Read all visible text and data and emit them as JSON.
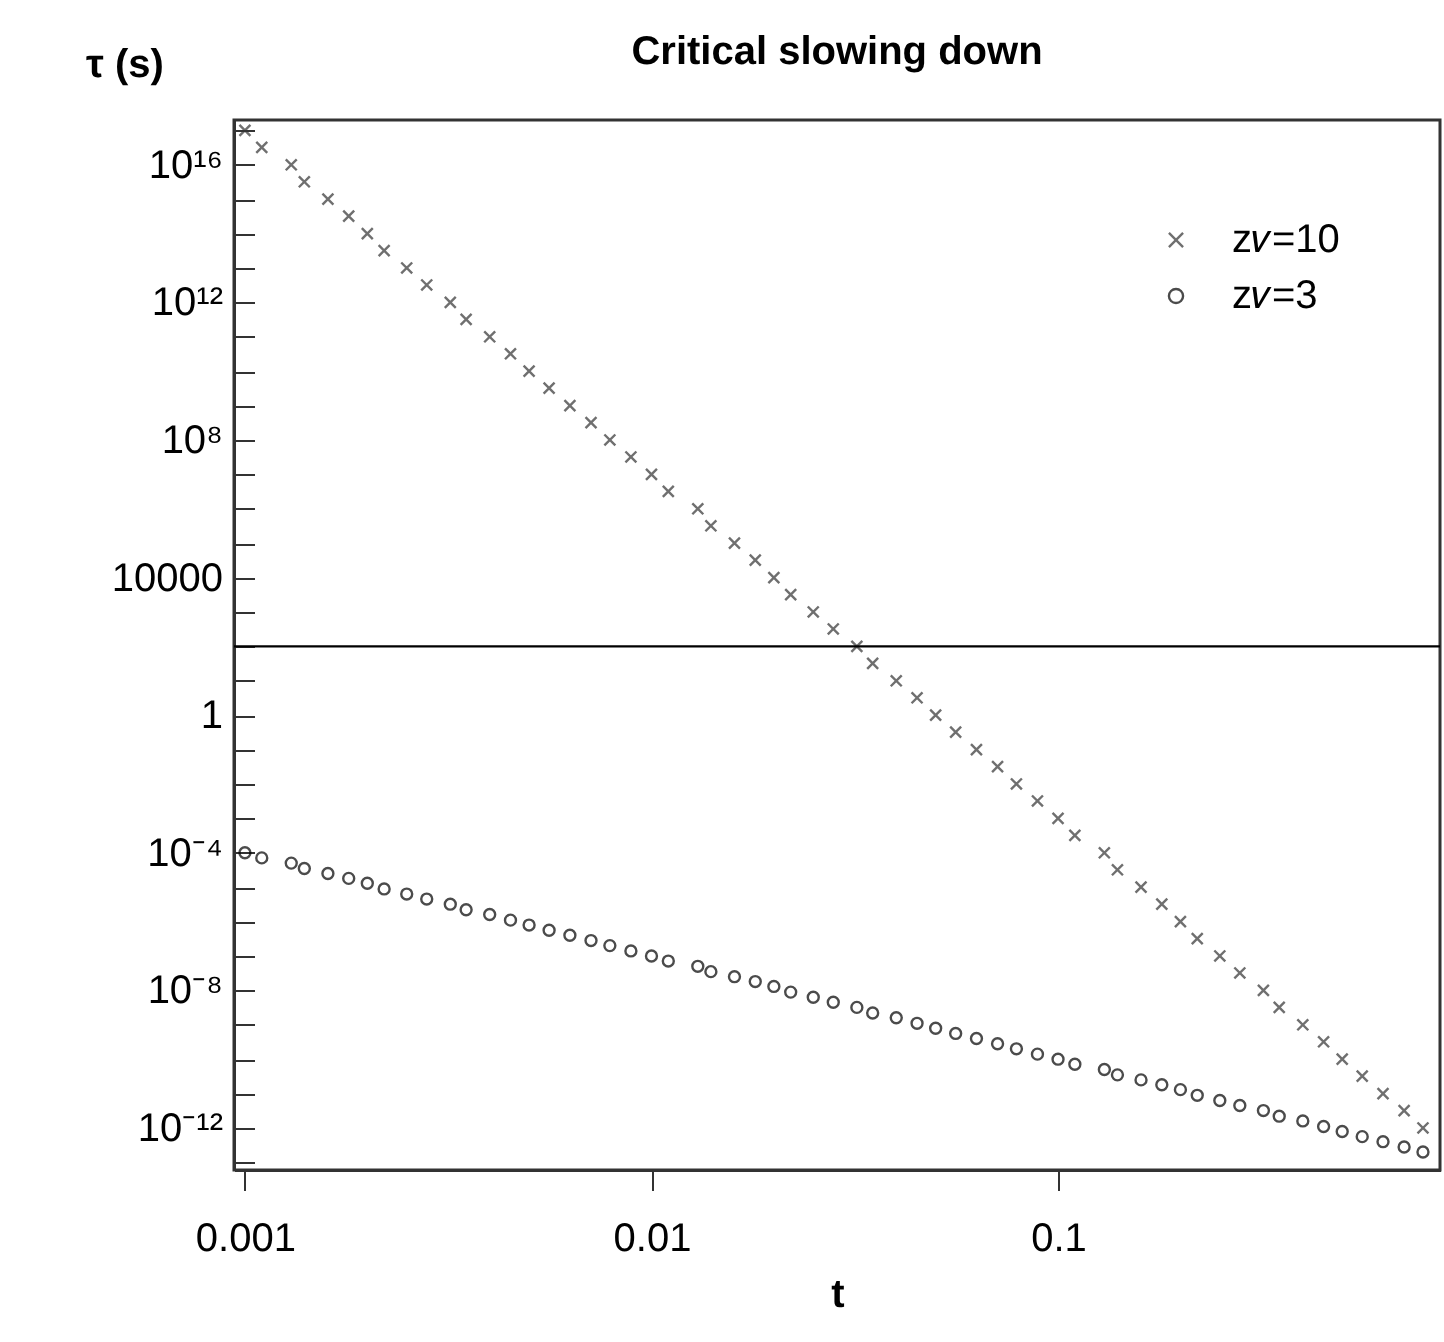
{
  "chart_data": {
    "type": "scatter",
    "title": "Critical slowing down",
    "xlabel": "t",
    "ylabel": "τ (s)",
    "log": "xy",
    "grid": false,
    "legend": "top right",
    "xlim": [
      0.00094,
      0.87
    ],
    "xticks": [
      0.001,
      0.01,
      0.1
    ],
    "ylim": [
      6e-14,
      2e+17
    ],
    "yticks": [
      {
        "value": 1e+17,
        "label": null
      },
      {
        "value": 1e+16,
        "label": "10¹⁶"
      },
      {
        "value": 1000000000000000.0,
        "label": null
      },
      {
        "value": 100000000000000.0,
        "label": null
      },
      {
        "value": 10000000000000.0,
        "label": null
      },
      {
        "value": 1000000000000.0,
        "label": "10¹²"
      },
      {
        "value": 100000000000.0,
        "label": null
      },
      {
        "value": 10000000000.0,
        "label": null
      },
      {
        "value": 1000000000.0,
        "label": null
      },
      {
        "value": 100000000.0,
        "label": "10⁸"
      },
      {
        "value": 10000000.0,
        "label": null
      },
      {
        "value": 1000000.0,
        "label": null
      },
      {
        "value": 100000.0,
        "label": null
      },
      10000,
      {
        "value": 1000,
        "label": null
      },
      {
        "value": 100,
        "label": null
      },
      {
        "value": 10,
        "label": null
      },
      1,
      {
        "value": 0.1,
        "label": null
      },
      {
        "value": 0.01,
        "label": null
      },
      {
        "value": 0.001,
        "label": null
      },
      {
        "value": 0.0001,
        "label": "10⁻⁴"
      },
      {
        "value": 1e-05,
        "label": null
      },
      {
        "value": 1e-06,
        "label": null
      },
      {
        "value": 1e-07,
        "label": null
      },
      {
        "value": 1e-08,
        "label": "10⁻⁸"
      },
      {
        "value": 1e-09,
        "label": null
      },
      {
        "value": 1e-10,
        "label": null
      },
      {
        "value": 1e-11,
        "label": null
      },
      {
        "value": 1e-12,
        "label": "10⁻¹²"
      },
      {
        "value": 1e-13,
        "label": null
      }
    ],
    "ref_lines": [
      {
        "axis": "y",
        "value": 100,
        "color": "#000000"
      }
    ],
    "x": [
      0.001,
      0.0011,
      0.0013,
      0.0014,
      0.0016,
      0.0018,
      0.002,
      0.0022,
      0.0025,
      0.0028,
      0.0032,
      0.0035,
      0.004,
      0.0045,
      0.005,
      0.0056,
      0.0063,
      0.0071,
      0.0079,
      0.0089,
      0.01,
      0.011,
      0.013,
      0.014,
      0.016,
      0.018,
      0.02,
      0.022,
      0.025,
      0.028,
      0.032,
      0.035,
      0.04,
      0.045,
      0.05,
      0.056,
      0.063,
      0.071,
      0.079,
      0.089,
      0.1,
      0.11,
      0.13,
      0.14,
      0.16,
      0.18,
      0.2,
      0.22,
      0.25,
      0.28,
      0.32,
      0.35,
      0.4,
      0.45,
      0.5,
      0.56,
      0.63,
      0.71,
      0.79
    ],
    "series": [
      {
        "name": "z𝜈=10",
        "color": "#333333",
        "marker": "cross",
        "values": [
          1e+17,
          3.2e+16,
          1e+16,
          3200000000000000.0,
          1000000000000000.0,
          320000000000000.0,
          100000000000000.0,
          32000000000000.0,
          10000000000000.0,
          3200000000000.0,
          1000000000000.0,
          320000000000.0,
          100000000000.0,
          32000000000.0,
          10000000000.0,
          3200000000.0,
          1000000000.0,
          320000000.0,
          100000000.0,
          32000000.0,
          10000000.0,
          3200000.0,
          1000000.0,
          320000.0,
          100000.0,
          32000.0,
          10000.0,
          3200,
          1000,
          320,
          100,
          32,
          10,
          3.2,
          1,
          0.32,
          0.1,
          0.032,
          0.01,
          0.0032,
          0.001,
          0.00032,
          0.0001,
          3.2e-05,
          1e-05,
          3.2e-06,
          1e-06,
          3.2e-07,
          1e-07,
          3.2e-08,
          1e-08,
          3.2e-09,
          1e-09,
          3.2e-10,
          1e-10,
          3.2e-11,
          1e-11,
          3.2e-12,
          1e-12
        ]
      },
      {
        "name": "z𝜈=3",
        "color": "#000000",
        "marker": "circle",
        "values": [
          0.0001,
          7.1e-05,
          5e-05,
          3.5e-05,
          2.5e-05,
          1.8e-05,
          1.3e-05,
          8.9e-06,
          6.3e-06,
          4.5e-06,
          3.2e-06,
          2.2e-06,
          1.6e-06,
          1.1e-06,
          7.9e-07,
          5.6e-07,
          4e-07,
          2.8e-07,
          2e-07,
          1.4e-07,
          1e-07,
          7.1e-08,
          5e-08,
          3.5e-08,
          2.5e-08,
          1.8e-08,
          1.3e-08,
          8.9e-09,
          6.3e-09,
          4.5e-09,
          3.2e-09,
          2.2e-09,
          1.6e-09,
          1.1e-09,
          7.9e-10,
          5.6e-10,
          4e-10,
          2.8e-10,
          2e-10,
          1.4e-10,
          1e-10,
          7.1e-11,
          5e-11,
          3.5e-11,
          2.5e-11,
          1.8e-11,
          1.3e-11,
          8.9e-12,
          6.3e-12,
          4.5e-12,
          3.2e-12,
          2.2e-12,
          1.6e-12,
          1.1e-12,
          7.9e-13,
          5.6e-13,
          4e-13,
          2.8e-13,
          2e-13
        ]
      }
    ]
  }
}
